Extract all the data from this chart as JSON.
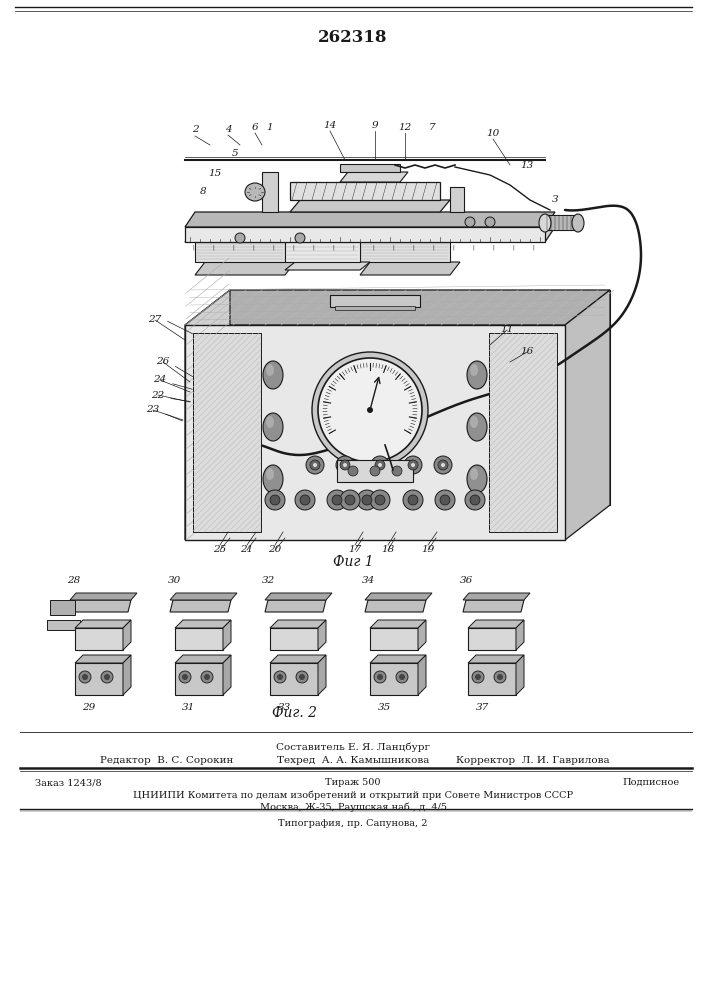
{
  "patent_number": "262318",
  "fig1_label": "Фиг 1",
  "fig2_label": "Фиг. 2",
  "footer_composer": "Составитель Е. Я. Ланцбург",
  "footer_editor_label": "Редактор",
  "footer_editor_name": "В. С. Сорокин",
  "footer_tech_label": "Техред",
  "footer_tech_name": "А. А. Камышникова",
  "footer_corr_label": "Корректор",
  "footer_corr_name": "Л. И. Гаврилова",
  "footer_order": "Заказ 1243/8",
  "footer_circulation": "Тираж 500",
  "footer_subscr": "Подписное",
  "footer_org": "ЦНИИПИ Комитета по делам изобретений и открытий при Совете Министров СССР",
  "footer_address": "Москва, Ж-35, Раушская наб., д. 4/5",
  "footer_print": "Типография, пр. Сапунова, 2",
  "bg_color": "#ffffff",
  "lc": "#1a1a1a"
}
